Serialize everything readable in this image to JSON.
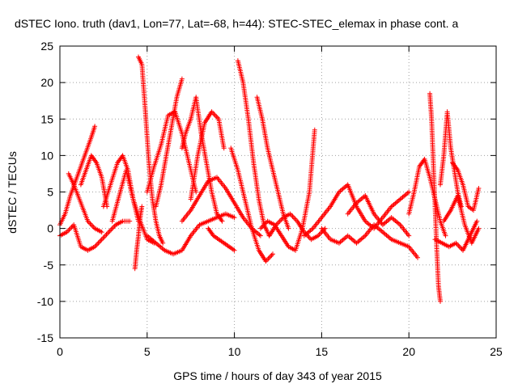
{
  "chart_data": {
    "type": "scatter",
    "title": "dSTEC Iono. truth (dav1, Lon=77, Lat=-68, h=44): STEC-STEC_elemax in phase cont. a",
    "xlabel": "GPS time / hours of day 343 of year 2015",
    "ylabel": "dSTEC  / TECUs",
    "xlim": [
      0,
      25
    ],
    "ylim": [
      -15,
      25
    ],
    "xticks": [
      "0",
      "5",
      "10",
      "15",
      "20",
      "25"
    ],
    "yticks": [
      "-15",
      "-10",
      "-5",
      "0",
      "5",
      "10",
      "15",
      "20",
      "25"
    ],
    "grid": true,
    "marker": "+",
    "color": "#ff0000",
    "series": [
      {
        "x": [
          0.0,
          0.3,
          0.6,
          0.9,
          1.2,
          1.5,
          1.8,
          2.0
        ],
        "y": [
          0.5,
          2.0,
          4.5,
          6.5,
          8.5,
          10.5,
          12.5,
          14.0
        ]
      },
      {
        "x": [
          0.0,
          0.4,
          0.8,
          1.2,
          1.6,
          2.0,
          2.4,
          2.8,
          3.2,
          3.6,
          4.0
        ],
        "y": [
          -1.0,
          -0.5,
          0.5,
          -2.5,
          -3.0,
          -2.5,
          -1.5,
          -0.5,
          0.5,
          1.0,
          1.0
        ]
      },
      {
        "x": [
          0.5,
          0.8,
          1.2,
          1.6,
          2.0,
          2.4
        ],
        "y": [
          7.5,
          6.0,
          3.5,
          1.0,
          0.0,
          -0.5
        ]
      },
      {
        "x": [
          1.2,
          1.5,
          1.8,
          2.1,
          2.4,
          2.7
        ],
        "y": [
          6.0,
          8.0,
          10.0,
          9.0,
          7.0,
          3.0
        ]
      },
      {
        "x": [
          2.5,
          2.9,
          3.3,
          3.6,
          3.9,
          4.2,
          4.5
        ],
        "y": [
          3.0,
          6.0,
          9.0,
          10.0,
          8.0,
          4.0,
          1.0
        ]
      },
      {
        "x": [
          3.0,
          3.4,
          3.8,
          4.2,
          4.6,
          5.0,
          5.4
        ],
        "y": [
          1.0,
          4.5,
          8.0,
          4.0,
          1.0,
          -1.5,
          -2.0
        ]
      },
      {
        "x": [
          4.3,
          4.4,
          4.5,
          4.6,
          4.7
        ],
        "y": [
          -5.5,
          -3.0,
          -1.0,
          1.5,
          3.0
        ]
      },
      {
        "x": [
          4.5,
          4.7,
          4.9,
          5.1,
          5.3,
          5.5,
          5.7,
          5.9
        ],
        "y": [
          23.5,
          22.5,
          16.0,
          9.0,
          4.0,
          1.0,
          -1.0,
          -2.0
        ]
      },
      {
        "x": [
          5.0,
          5.4,
          5.8,
          6.2,
          6.6,
          7.0,
          7.4,
          7.8
        ],
        "y": [
          5.0,
          8.5,
          11.5,
          15.5,
          16.0,
          13.0,
          9.0,
          5.0
        ]
      },
      {
        "x": [
          5.5,
          5.8,
          6.1,
          6.4,
          6.7,
          7.0
        ],
        "y": [
          3.0,
          6.0,
          10.0,
          14.0,
          18.0,
          20.5
        ]
      },
      {
        "x": [
          5.0,
          5.5,
          6.0,
          6.5,
          7.0,
          7.5,
          8.0,
          8.5,
          9.0,
          9.5,
          10.0
        ],
        "y": [
          -1.0,
          -2.0,
          -3.0,
          -3.5,
          -3.0,
          -1.0,
          0.5,
          1.0,
          1.5,
          2.0,
          1.5
        ]
      },
      {
        "x": [
          7.0,
          7.2,
          7.5,
          7.8,
          8.1,
          8.4,
          8.7,
          9.0,
          9.3
        ],
        "y": [
          11.0,
          13.0,
          15.0,
          18.0,
          13.0,
          9.0,
          5.0,
          2.0,
          1.0
        ]
      },
      {
        "x": [
          7.5,
          7.9,
          8.3,
          8.7,
          9.1,
          9.4
        ],
        "y": [
          4.0,
          10.0,
          14.5,
          16.0,
          15.0,
          11.0
        ]
      },
      {
        "x": [
          7.0,
          7.5,
          8.0,
          8.5,
          9.0,
          9.5,
          10.0,
          10.5,
          11.0,
          11.5
        ],
        "y": [
          1.0,
          2.5,
          4.5,
          6.5,
          7.0,
          5.5,
          3.5,
          1.5,
          0.0,
          -1.0
        ]
      },
      {
        "x": [
          8.5,
          8.8,
          9.1,
          9.4,
          9.7,
          10.0
        ],
        "y": [
          0.0,
          -1.0,
          -1.5,
          -2.0,
          -2.5,
          -3.0
        ]
      },
      {
        "x": [
          10.2,
          10.5,
          10.8,
          11.1,
          11.4,
          11.7,
          12.0
        ],
        "y": [
          23.0,
          20.0,
          15.0,
          9.0,
          4.0,
          0.5,
          -1.0
        ]
      },
      {
        "x": [
          9.8,
          10.2,
          10.6,
          11.0,
          11.4,
          11.8,
          12.2
        ],
        "y": [
          11.0,
          8.0,
          4.0,
          0.0,
          -3.0,
          -4.5,
          -3.5
        ]
      },
      {
        "x": [
          11.3,
          11.6,
          11.9,
          12.2,
          12.5,
          12.8,
          13.1
        ],
        "y": [
          18.0,
          15.0,
          11.0,
          8.0,
          5.0,
          2.0,
          0.0
        ]
      },
      {
        "x": [
          11.5,
          11.9,
          12.3,
          12.7,
          13.1,
          13.5,
          13.9,
          14.3,
          14.6
        ],
        "y": [
          0.0,
          1.0,
          0.5,
          -1.0,
          -2.5,
          -3.0,
          0.0,
          5.0,
          13.5
        ]
      },
      {
        "x": [
          12.0,
          12.4,
          12.8,
          13.2,
          13.6,
          14.0,
          14.4,
          14.8,
          15.2
        ],
        "y": [
          -1.0,
          0.5,
          1.5,
          2.0,
          1.0,
          -0.5,
          -1.5,
          -1.0,
          0.0
        ]
      },
      {
        "x": [
          14.0,
          14.5,
          15.0,
          15.5,
          16.0,
          16.5,
          17.0,
          17.5,
          18.0,
          18.5,
          19.0,
          19.5,
          20.0
        ],
        "y": [
          -1.0,
          0.0,
          1.5,
          3.0,
          5.0,
          6.0,
          3.0,
          1.0,
          0.0,
          1.5,
          3.0,
          4.0,
          5.0
        ]
      },
      {
        "x": [
          15.0,
          15.5,
          16.0,
          16.5,
          17.0,
          17.5,
          18.0,
          18.5,
          19.0,
          19.5,
          20.0,
          20.5
        ],
        "y": [
          0.0,
          -1.5,
          -2.0,
          -1.0,
          -2.0,
          -1.0,
          0.5,
          -0.5,
          -1.5,
          -2.0,
          -2.5,
          -4.0
        ]
      },
      {
        "x": [
          16.5,
          17.0,
          17.5,
          18.0,
          18.5,
          19.0,
          19.5,
          20.0
        ],
        "y": [
          2.0,
          3.5,
          4.5,
          2.0,
          0.5,
          1.5,
          0.5,
          -1.0
        ]
      },
      {
        "x": [
          20.0,
          20.3,
          20.6,
          20.9,
          21.2,
          21.5,
          21.8,
          22.1
        ],
        "y": [
          2.0,
          5.0,
          8.5,
          9.5,
          7.0,
          4.0,
          1.0,
          -1.0
        ]
      },
      {
        "x": [
          21.2,
          21.3,
          21.4,
          21.5,
          21.6,
          21.7,
          21.8
        ],
        "y": [
          18.5,
          15.0,
          9.0,
          3.0,
          -3.0,
          -8.0,
          -10.0
        ]
      },
      {
        "x": [
          21.8,
          22.0,
          22.2,
          22.4,
          22.6,
          22.8,
          23.0
        ],
        "y": [
          6.0,
          10.0,
          16.0,
          11.0,
          8.0,
          5.0,
          3.0
        ]
      },
      {
        "x": [
          21.5,
          21.9,
          22.3,
          22.7,
          23.1,
          23.5,
          23.9
        ],
        "y": [
          -1.5,
          -2.0,
          -2.5,
          -2.0,
          -3.0,
          -1.0,
          1.0
        ]
      },
      {
        "x": [
          22.5,
          22.8,
          23.1,
          23.4,
          23.7,
          24.0
        ],
        "y": [
          9.0,
          8.0,
          6.0,
          3.0,
          2.5,
          5.5
        ]
      },
      {
        "x": [
          22.0,
          22.4,
          22.8,
          23.2,
          23.6,
          24.0
        ],
        "y": [
          1.0,
          2.5,
          4.5,
          0.5,
          -2.0,
          0.0
        ]
      }
    ]
  }
}
